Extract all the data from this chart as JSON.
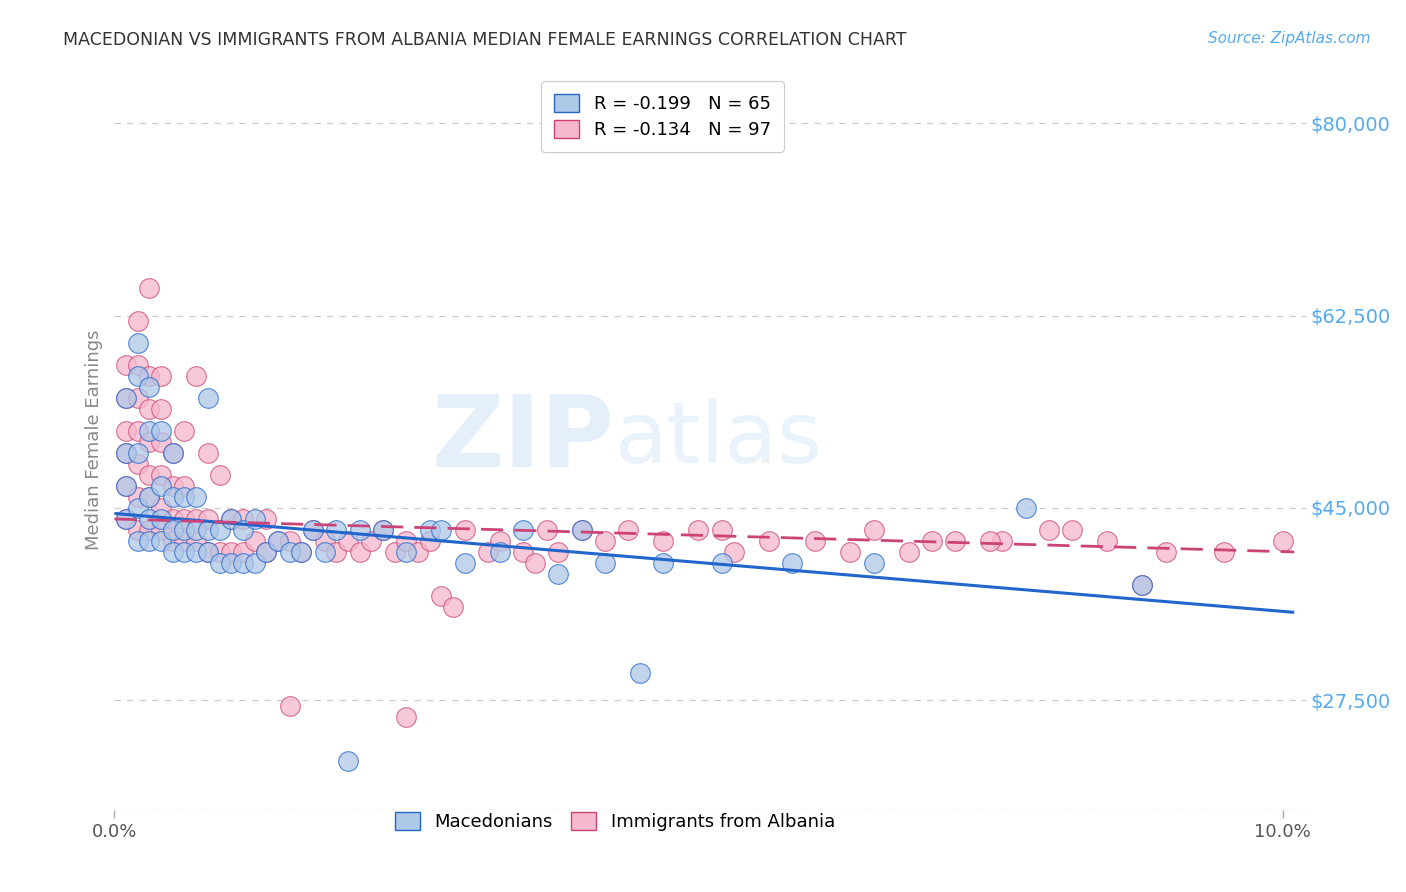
{
  "title": "MACEDONIAN VS IMMIGRANTS FROM ALBANIA MEDIAN FEMALE EARNINGS CORRELATION CHART",
  "source": "Source: ZipAtlas.com",
  "ylabel": "Median Female Earnings",
  "ytick_labels": [
    "$27,500",
    "$45,000",
    "$62,500",
    "$80,000"
  ],
  "ytick_values": [
    27500,
    45000,
    62500,
    80000
  ],
  "ylim": [
    17500,
    85000
  ],
  "xlim": [
    0.0,
    0.102
  ],
  "legend_entry_blue": "R = -0.199   N = 65",
  "legend_entry_pink": "R = -0.134   N = 97",
  "watermark_zip": "ZIP",
  "watermark_atlas": "atlas",
  "blue_scatter_color": "#aec8e8",
  "pink_scatter_color": "#f5b8cc",
  "trend_blue": "#2266cc",
  "trend_pink": "#cc4477",
  "blue_trend_x": [
    0.0,
    0.101
  ],
  "blue_trend_y": [
    44500,
    35500
  ],
  "pink_trend_x": [
    0.0,
    0.101
  ],
  "pink_trend_y": [
    44000,
    41000
  ],
  "grid_color": "#cccccc",
  "bg_color": "#ffffff",
  "title_color": "#333333",
  "source_color": "#55aaee",
  "label_color": "#888888",
  "ytick_color": "#55aaee",
  "xtick_color": "#555555",
  "macedonians_x": [
    0.001,
    0.001,
    0.001,
    0.001,
    0.002,
    0.002,
    0.002,
    0.002,
    0.002,
    0.003,
    0.003,
    0.003,
    0.003,
    0.003,
    0.004,
    0.004,
    0.004,
    0.004,
    0.005,
    0.005,
    0.005,
    0.005,
    0.006,
    0.006,
    0.006,
    0.007,
    0.007,
    0.007,
    0.008,
    0.008,
    0.008,
    0.009,
    0.009,
    0.01,
    0.01,
    0.011,
    0.011,
    0.012,
    0.012,
    0.013,
    0.014,
    0.015,
    0.016,
    0.017,
    0.018,
    0.019,
    0.021,
    0.023,
    0.025,
    0.027,
    0.03,
    0.033,
    0.038,
    0.042,
    0.047,
    0.052,
    0.058,
    0.065,
    0.078,
    0.088,
    0.04,
    0.045,
    0.035,
    0.028,
    0.02
  ],
  "macedonians_y": [
    44000,
    47000,
    50000,
    55000,
    42000,
    45000,
    50000,
    57000,
    60000,
    42000,
    44000,
    46000,
    52000,
    56000,
    42000,
    44000,
    47000,
    52000,
    41000,
    43000,
    46000,
    50000,
    41000,
    43000,
    46000,
    41000,
    43000,
    46000,
    41000,
    43000,
    55000,
    40000,
    43000,
    40000,
    44000,
    40000,
    43000,
    40000,
    44000,
    41000,
    42000,
    41000,
    41000,
    43000,
    41000,
    43000,
    43000,
    43000,
    41000,
    43000,
    40000,
    41000,
    39000,
    40000,
    40000,
    40000,
    40000,
    40000,
    45000,
    38000,
    43000,
    30000,
    43000,
    43000,
    22000
  ],
  "albania_x": [
    0.001,
    0.001,
    0.001,
    0.001,
    0.001,
    0.001,
    0.002,
    0.002,
    0.002,
    0.002,
    0.002,
    0.002,
    0.002,
    0.003,
    0.003,
    0.003,
    0.003,
    0.003,
    0.003,
    0.003,
    0.004,
    0.004,
    0.004,
    0.004,
    0.004,
    0.004,
    0.005,
    0.005,
    0.005,
    0.005,
    0.006,
    0.006,
    0.006,
    0.006,
    0.007,
    0.007,
    0.007,
    0.008,
    0.008,
    0.008,
    0.009,
    0.009,
    0.01,
    0.01,
    0.011,
    0.011,
    0.012,
    0.013,
    0.013,
    0.014,
    0.015,
    0.016,
    0.017,
    0.018,
    0.019,
    0.02,
    0.021,
    0.022,
    0.023,
    0.024,
    0.025,
    0.026,
    0.027,
    0.028,
    0.029,
    0.03,
    0.032,
    0.033,
    0.035,
    0.036,
    0.037,
    0.038,
    0.04,
    0.042,
    0.044,
    0.047,
    0.05,
    0.053,
    0.056,
    0.06,
    0.065,
    0.068,
    0.072,
    0.076,
    0.08,
    0.085,
    0.09,
    0.052,
    0.063,
    0.07,
    0.075,
    0.082,
    0.088,
    0.095,
    0.1,
    0.015,
    0.025
  ],
  "albania_y": [
    44000,
    47000,
    50000,
    52000,
    55000,
    58000,
    43000,
    46000,
    49000,
    52000,
    55000,
    58000,
    62000,
    43000,
    46000,
    48000,
    51000,
    54000,
    57000,
    65000,
    43000,
    45000,
    48000,
    51000,
    54000,
    57000,
    42000,
    44000,
    47000,
    50000,
    42000,
    44000,
    47000,
    52000,
    42000,
    44000,
    57000,
    41000,
    44000,
    50000,
    41000,
    48000,
    41000,
    44000,
    41000,
    44000,
    42000,
    41000,
    44000,
    42000,
    42000,
    41000,
    43000,
    42000,
    41000,
    42000,
    41000,
    42000,
    43000,
    41000,
    42000,
    41000,
    42000,
    37000,
    36000,
    43000,
    41000,
    42000,
    41000,
    40000,
    43000,
    41000,
    43000,
    42000,
    43000,
    42000,
    43000,
    41000,
    42000,
    42000,
    43000,
    41000,
    42000,
    42000,
    43000,
    42000,
    41000,
    43000,
    41000,
    42000,
    42000,
    43000,
    38000,
    41000,
    42000,
    27000,
    26000
  ]
}
